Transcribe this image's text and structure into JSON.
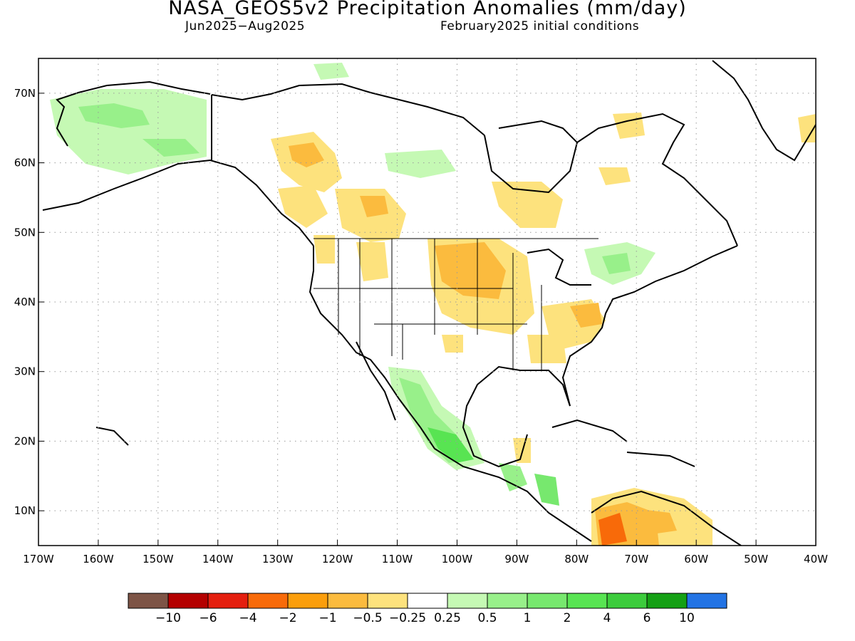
{
  "header": {
    "title": "NASA_GEOS5v2 Precipitation Anomalies (mm/day)",
    "period": "Jun2025−Aug2025",
    "init": "February2025 initial conditions"
  },
  "axes": {
    "lon_ticks": [
      "170W",
      "160W",
      "150W",
      "140W",
      "130W",
      "120W",
      "110W",
      "100W",
      "90W",
      "80W",
      "70W",
      "60W",
      "50W",
      "40W"
    ],
    "lon_values": [
      -170,
      -160,
      -150,
      -140,
      -130,
      -120,
      -110,
      -100,
      -90,
      -80,
      -70,
      -60,
      -50,
      -40
    ],
    "lat_ticks": [
      "70N",
      "60N",
      "50N",
      "40N",
      "30N",
      "20N",
      "10N"
    ],
    "lat_values": [
      70,
      60,
      50,
      40,
      30,
      20,
      10
    ],
    "lon_range": [
      -170,
      -40
    ],
    "lat_range": [
      5,
      75
    ],
    "grid": "dotted"
  },
  "colorbar": {
    "colors": [
      "#7d5446",
      "#b40000",
      "#e41e0e",
      "#f86a09",
      "#fb9e0c",
      "#fbbb3e",
      "#fde27d",
      "#ffffff",
      "#c5f9b4",
      "#98f08a",
      "#77e86e",
      "#58e452",
      "#3ccc3c",
      "#14a014",
      "#2273e4"
    ],
    "labels": [
      "−10",
      "−6",
      "−4",
      "−2",
      "−1",
      "−0.5",
      "−0.25",
      "0.25",
      "0.5",
      "1",
      "2",
      "4",
      "6",
      "10"
    ]
  },
  "anomalies": [
    {
      "lon": -150,
      "lat": 67,
      "value": 0.5
    },
    {
      "lon": -157,
      "lat": 64,
      "value": 0.5
    },
    {
      "lon": -125,
      "lat": 61,
      "value": -1
    },
    {
      "lon": -117,
      "lat": 54,
      "value": -0.5
    },
    {
      "lon": -96,
      "lat": 43,
      "value": -1
    },
    {
      "lon": -90,
      "lat": 39,
      "value": -0.5
    },
    {
      "lon": -80,
      "lat": 37,
      "value": -0.5
    },
    {
      "lon": -108,
      "lat": 23,
      "value": 1
    },
    {
      "lon": -97,
      "lat": 18,
      "value": 2
    },
    {
      "lon": -72,
      "lat": 6,
      "value": -2
    },
    {
      "lon": -88,
      "lat": 16,
      "value": 1
    },
    {
      "lon": -73,
      "lat": 45,
      "value": 0.5
    }
  ]
}
